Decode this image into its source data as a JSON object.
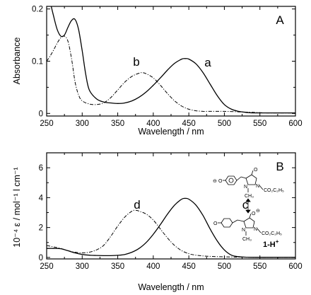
{
  "chart_data": [
    {
      "type": "line",
      "panel_label": "A",
      "xlabel": "Wavelength / nm",
      "ylabel": "Absorbance",
      "xlim": [
        250,
        600
      ],
      "ylim": [
        -0.005,
        0.205
      ],
      "xticks": [
        "250",
        "300",
        "350",
        "400",
        "450",
        "500",
        "550",
        "600"
      ],
      "yticks": [
        "0",
        "0.1",
        "0.2"
      ],
      "ytick_values": [
        0,
        0.1,
        0.2
      ],
      "series": [
        {
          "name": "a",
          "style": "solid",
          "x": [
            250,
            255,
            260,
            265,
            270,
            275,
            280,
            285,
            290,
            295,
            300,
            305,
            310,
            320,
            330,
            340,
            350,
            360,
            370,
            380,
            390,
            400,
            410,
            420,
            430,
            440,
            445,
            450,
            460,
            470,
            480,
            490,
            500,
            510,
            520,
            530,
            540,
            550,
            560,
            570,
            580,
            590,
            600
          ],
          "y": [
            0.26,
            0.215,
            0.185,
            0.16,
            0.148,
            0.15,
            0.165,
            0.178,
            0.18,
            0.16,
            0.12,
            0.075,
            0.045,
            0.028,
            0.022,
            0.02,
            0.019,
            0.02,
            0.024,
            0.031,
            0.041,
            0.054,
            0.068,
            0.083,
            0.096,
            0.104,
            0.105,
            0.104,
            0.095,
            0.078,
            0.056,
            0.034,
            0.017,
            0.008,
            0.004,
            0.002,
            0.001,
            0.001,
            0.001,
            0.001,
            0.001,
            0.001,
            0.001
          ]
        },
        {
          "name": "b",
          "style": "dash-dot",
          "x": [
            250,
            255,
            260,
            265,
            270,
            275,
            280,
            285,
            290,
            295,
            300,
            310,
            320,
            330,
            340,
            350,
            360,
            370,
            380,
            385,
            390,
            400,
            410,
            420,
            430,
            440,
            450,
            460,
            470,
            480,
            490,
            500,
            520,
            540,
            560,
            580,
            600
          ],
          "y": [
            0.1,
            0.11,
            0.122,
            0.135,
            0.145,
            0.148,
            0.138,
            0.105,
            0.06,
            0.035,
            0.024,
            0.018,
            0.017,
            0.02,
            0.03,
            0.045,
            0.06,
            0.071,
            0.077,
            0.078,
            0.076,
            0.068,
            0.054,
            0.038,
            0.024,
            0.014,
            0.008,
            0.005,
            0.004,
            0.004,
            0.004,
            0.004,
            0.003,
            0.002,
            0.001,
            0.001,
            0.001
          ]
        }
      ]
    },
    {
      "type": "line",
      "panel_label": "B",
      "xlabel": "Wavelength / nm",
      "ylabel": "10⁻⁴ ε / mol⁻¹ l cm⁻¹",
      "xlim": [
        250,
        600
      ],
      "ylim": [
        -0.1,
        7.0
      ],
      "xticks": [
        "250",
        "300",
        "350",
        "400",
        "450",
        "500",
        "550",
        "600"
      ],
      "yticks": [
        "0",
        "2",
        "4",
        "6"
      ],
      "ytick_values": [
        0,
        2,
        4,
        6
      ],
      "series": [
        {
          "name": "c",
          "style": "solid",
          "x": [
            250,
            260,
            270,
            280,
            290,
            300,
            310,
            320,
            330,
            340,
            350,
            360,
            370,
            380,
            390,
            400,
            410,
            420,
            430,
            440,
            445,
            450,
            460,
            470,
            480,
            490,
            500,
            510,
            520,
            530,
            540,
            550,
            560,
            570,
            580,
            590,
            600
          ],
          "y": [
            0.6,
            0.6,
            0.58,
            0.45,
            0.3,
            0.2,
            0.15,
            0.13,
            0.12,
            0.12,
            0.14,
            0.2,
            0.35,
            0.6,
            1.0,
            1.55,
            2.2,
            2.9,
            3.5,
            3.9,
            3.95,
            3.9,
            3.5,
            2.8,
            1.9,
            1.1,
            0.5,
            0.15,
            0.05,
            0.02,
            0.01,
            0.01,
            0.01,
            0.01,
            0.01,
            0.01,
            0.01
          ]
        },
        {
          "name": "d",
          "style": "dash-dot",
          "x": [
            250,
            260,
            270,
            280,
            290,
            300,
            310,
            320,
            330,
            340,
            350,
            360,
            370,
            375,
            380,
            390,
            400,
            410,
            420,
            430,
            440,
            450,
            460,
            470,
            480,
            490,
            500,
            510,
            520,
            540,
            560,
            580,
            600
          ],
          "y": [
            0.8,
            0.7,
            0.6,
            0.45,
            0.35,
            0.3,
            0.35,
            0.5,
            0.8,
            1.4,
            2.1,
            2.7,
            3.1,
            3.15,
            3.1,
            2.9,
            2.5,
            1.9,
            1.3,
            0.8,
            0.45,
            0.25,
            0.15,
            0.1,
            0.07,
            0.05,
            0.04,
            0.03,
            0.02,
            0.01,
            0.01,
            0.01,
            0.01
          ]
        }
      ]
    }
  ],
  "structure": {
    "label": "1-H",
    "label_charge": "+",
    "substituent": "CO₂C₂H₅",
    "methyl": "CH₃",
    "phenoxide": "O",
    "ring_n": "N",
    "ring_o": "O",
    "charge": "⊖"
  }
}
